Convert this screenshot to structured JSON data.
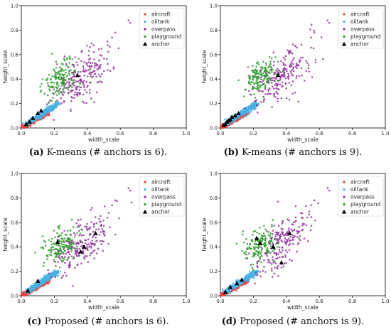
{
  "chart_data": [
    {
      "type": "scatter",
      "caption_letter": "(a)",
      "caption_text": " K-means (# anchors is 6).",
      "xlabel": "width_scale",
      "ylabel": "height_scale",
      "xlim": [
        0,
        1.0
      ],
      "ylim": [
        0,
        1.0
      ],
      "xticks": [
        "0.0",
        "0.2",
        "0.4",
        "0.6",
        "0.8",
        "1.0"
      ],
      "yticks": [
        "0.0",
        "0.2",
        "0.4",
        "0.6",
        "0.8",
        "1.0"
      ],
      "legend_position": "top-right",
      "series": [
        {
          "name": "aircraft",
          "color": "#e8413a"
        },
        {
          "name": "oiltank",
          "color": "#4ab0e4"
        },
        {
          "name": "overpass",
          "color": "#8e2e9a"
        },
        {
          "name": "playground",
          "color": "#2c9a2c"
        },
        {
          "name": "anchor",
          "color": "#000000",
          "points": [
            [
              0.03,
              0.03
            ],
            [
              0.05,
              0.05
            ],
            [
              0.07,
              0.08
            ],
            [
              0.1,
              0.12
            ],
            [
              0.12,
              0.14
            ],
            [
              0.34,
              0.43
            ]
          ]
        }
      ]
    },
    {
      "type": "scatter",
      "caption_letter": "(b)",
      "caption_text": " K-means (# anchors is 9).",
      "xlabel": "width_scale",
      "ylabel": "height_scale",
      "xlim": [
        0,
        1.0
      ],
      "ylim": [
        0,
        1.0
      ],
      "xticks": [
        "0.0",
        "0.2",
        "0.4",
        "0.6",
        "0.8",
        "1.0"
      ],
      "yticks": [
        "0.0",
        "0.2",
        "0.4",
        "0.6",
        "0.8",
        "1.0"
      ],
      "legend_position": "top-right",
      "series": [
        {
          "name": "aircraft",
          "color": "#e8413a"
        },
        {
          "name": "oiltank",
          "color": "#4ab0e4"
        },
        {
          "name": "overpass",
          "color": "#8e2e9a"
        },
        {
          "name": "playground",
          "color": "#2c9a2c"
        },
        {
          "name": "anchor",
          "color": "#000000",
          "points": [
            [
              0.02,
              0.02
            ],
            [
              0.03,
              0.03
            ],
            [
              0.04,
              0.05
            ],
            [
              0.05,
              0.06
            ],
            [
              0.06,
              0.07
            ],
            [
              0.07,
              0.09
            ],
            [
              0.09,
              0.1
            ],
            [
              0.11,
              0.12
            ],
            [
              0.35,
              0.43
            ]
          ]
        }
      ]
    },
    {
      "type": "scatter",
      "caption_letter": "(c)",
      "caption_text": " Proposed (# anchors is 6).",
      "xlabel": "width_scale",
      "ylabel": "height_scale",
      "xlim": [
        0,
        1.0
      ],
      "ylim": [
        0,
        1.0
      ],
      "xticks": [
        "0.0",
        "0.2",
        "0.4",
        "0.6",
        "0.8",
        "1.0"
      ],
      "yticks": [
        "0.0",
        "0.2",
        "0.4",
        "0.6",
        "0.8",
        "1.0"
      ],
      "legend_position": "top-right",
      "series": [
        {
          "name": "aircraft",
          "color": "#e8413a"
        },
        {
          "name": "oiltank",
          "color": "#4ab0e4"
        },
        {
          "name": "overpass",
          "color": "#8e2e9a"
        },
        {
          "name": "playground",
          "color": "#2c9a2c"
        },
        {
          "name": "anchor",
          "color": "#000000",
          "points": [
            [
              0.04,
              0.04
            ],
            [
              0.1,
              0.12
            ],
            [
              0.22,
              0.44
            ],
            [
              0.36,
              0.36
            ],
            [
              0.38,
              0.4
            ],
            [
              0.45,
              0.51
            ]
          ]
        }
      ]
    },
    {
      "type": "scatter",
      "caption_letter": "(d)",
      "caption_text": " Proposed (# anchors is 9).",
      "xlabel": "width_scale",
      "ylabel": "height_scale",
      "xlim": [
        0,
        1.0
      ],
      "ylim": [
        0,
        1.0
      ],
      "xticks": [
        "0.0",
        "0.2",
        "0.4",
        "0.6",
        "0.8",
        "1.0"
      ],
      "yticks": [
        "0.0",
        "0.2",
        "0.4",
        "0.6",
        "0.8",
        "1.0"
      ],
      "legend_position": "top-right",
      "series": [
        {
          "name": "aircraft",
          "color": "#e8413a"
        },
        {
          "name": "oiltank",
          "color": "#4ab0e4"
        },
        {
          "name": "overpass",
          "color": "#8e2e9a"
        },
        {
          "name": "playground",
          "color": "#2c9a2c"
        },
        {
          "name": "anchor",
          "color": "#000000",
          "points": [
            [
              0.03,
              0.03
            ],
            [
              0.06,
              0.07
            ],
            [
              0.1,
              0.1
            ],
            [
              0.13,
              0.13
            ],
            [
              0.22,
              0.47
            ],
            [
              0.24,
              0.43
            ],
            [
              0.32,
              0.4
            ],
            [
              0.37,
              0.27
            ],
            [
              0.42,
              0.51
            ]
          ]
        }
      ]
    }
  ]
}
